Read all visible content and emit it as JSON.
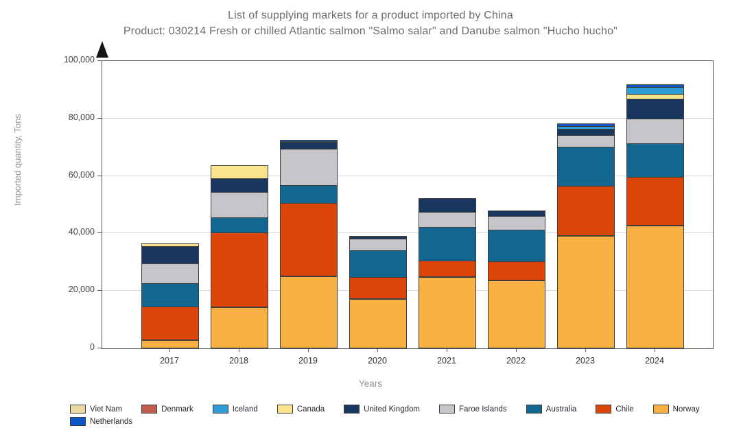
{
  "title": {
    "line1": "List of supplying markets for a product imported by China",
    "line2": "Product: 030214 Fresh or chilled Atlantic salmon \"Salmo salar\" and Danube salmon \"Hucho hucho\""
  },
  "y_axis": {
    "label": "Imported quantity, Tons",
    "ticks": [
      0,
      20000,
      40000,
      60000,
      80000,
      100000
    ],
    "tick_labels": [
      "0",
      "20,000",
      "40,000",
      "60,000",
      "80,000",
      "100,000"
    ],
    "max": 100000
  },
  "x_axis": {
    "label": "Years"
  },
  "chart_data": {
    "type": "bar",
    "stacked": true,
    "title": "List of supplying markets for a product imported by China",
    "xlabel": "Years",
    "ylabel": "Imported quantity, Tons",
    "ylim": [
      0,
      100000
    ],
    "grid": true,
    "legend_position": "bottom",
    "categories": [
      "2017",
      "2018",
      "2019",
      "2020",
      "2021",
      "2022",
      "2023",
      "2024"
    ],
    "series": [
      {
        "name": "Norway",
        "color": "#F9B043",
        "values": [
          2900,
          14300,
          25100,
          17200,
          24800,
          23600,
          39100,
          42700
        ]
      },
      {
        "name": "Chile",
        "color": "#DC4508",
        "values": [
          11700,
          26000,
          25500,
          7600,
          5800,
          6700,
          17400,
          17000
        ]
      },
      {
        "name": "Australia",
        "color": "#11678F",
        "values": [
          8400,
          5500,
          6400,
          9500,
          11900,
          11200,
          13800,
          11900
        ]
      },
      {
        "name": "Faroe Islands",
        "color": "#C6C6CA",
        "values": [
          7200,
          9100,
          12900,
          4300,
          5500,
          5000,
          4500,
          8800
        ]
      },
      {
        "name": "United Kingdom",
        "color": "#18365E",
        "values": [
          6000,
          5000,
          2600,
          1100,
          5000,
          2200,
          2400,
          7200
        ]
      },
      {
        "name": "Canada",
        "color": "#FBE48E",
        "values": [
          1400,
          4800,
          0,
          0,
          0,
          0,
          0,
          1900
        ]
      },
      {
        "name": "Iceland",
        "color": "#2F9CD8",
        "values": [
          0,
          0,
          500,
          400,
          0,
          0,
          1000,
          2600
        ]
      },
      {
        "name": "Denmark",
        "color": "#C05B4D",
        "values": [
          0,
          0,
          0,
          0,
          0,
          0,
          0,
          0
        ]
      },
      {
        "name": "Viet Nam",
        "color": "#EBD9A5",
        "values": [
          0,
          0,
          0,
          0,
          0,
          0,
          0,
          0
        ]
      },
      {
        "name": "Netherlands",
        "color": "#0F55C8",
        "values": [
          0,
          0,
          800,
          0,
          0,
          0,
          1200,
          1200
        ]
      }
    ],
    "totals": [
      37600,
      64700,
      73800,
      40100,
      53000,
      48700,
      79400,
      93300
    ],
    "legend_order": [
      "Viet Nam",
      "Denmark",
      "Iceland",
      "Canada",
      "United Kingdom",
      "Faroe Islands",
      "Australia",
      "Chile",
      "Norway",
      "Netherlands"
    ]
  },
  "colors": {
    "background": "#FFFFFF",
    "plot_border": "#555555",
    "gridline": "#D9D9D9",
    "title_text": "#6B6B6B",
    "axis_text": "#3F3F3F",
    "muted_text": "#949494"
  }
}
